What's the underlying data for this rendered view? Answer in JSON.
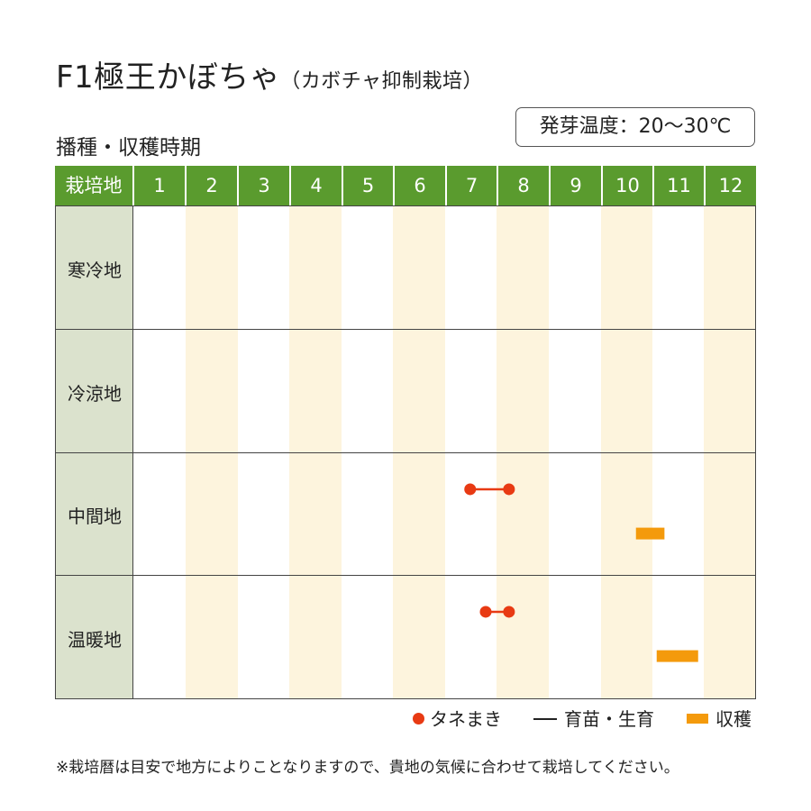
{
  "title": "F1極王かぼちゃ",
  "title_sub": "（カボチャ抑制栽培）",
  "subtitle": "播種・収穫時期",
  "germination_temp": "発芽温度：20〜30℃",
  "header_label": "栽培地",
  "months": [
    "1",
    "2",
    "3",
    "4",
    "5",
    "6",
    "7",
    "8",
    "9",
    "10",
    "11",
    "12"
  ],
  "legend": {
    "sowing": "タネまき",
    "growing": "育苗・生育",
    "harvest": "収穫"
  },
  "footnote": "※栽培暦は目安で地方によりことなりますので、貴地の気候に合わせて栽培してください。",
  "colors": {
    "header": "#5a9b2e",
    "region_bg": "#dbe2cd",
    "stripe": "#fdf4dd",
    "sowing": "#e83a13",
    "harvest": "#f49a0c"
  },
  "chart_data": {
    "type": "table",
    "x_unit": "month",
    "xlim": [
      1,
      13
    ],
    "regions": [
      {
        "name": "寒冷地",
        "sowing": [],
        "harvest": []
      },
      {
        "name": "冷涼地",
        "sowing": [],
        "harvest": []
      },
      {
        "name": "中間地",
        "sowing": [
          {
            "start": 7.5,
            "end": 8.25
          }
        ],
        "harvest": [
          {
            "start": 10.7,
            "end": 11.25
          }
        ]
      },
      {
        "name": "温暖地",
        "sowing": [
          {
            "start": 7.8,
            "end": 8.25
          }
        ],
        "harvest": [
          {
            "start": 11.1,
            "end": 11.9
          }
        ]
      }
    ]
  }
}
